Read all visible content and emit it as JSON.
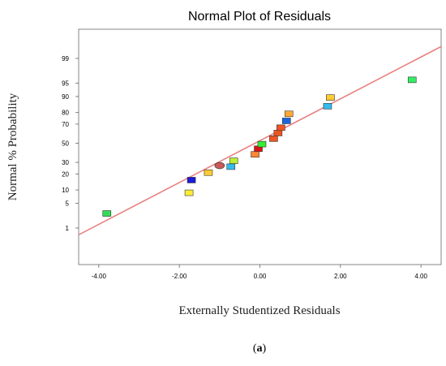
{
  "chart_data": {
    "type": "scatter",
    "title": "Normal Plot of Residuals",
    "xlabel": "Externally Studentized Residuals",
    "ylabel": "Normal % Probability",
    "xlim": [
      -4.5,
      4.5
    ],
    "x_ticks": [
      -4.0,
      -2.0,
      0.0,
      2.0,
      4.0
    ],
    "x_tick_labels": [
      "-4.00",
      "-2.00",
      "0.00",
      "2.00",
      "4.00"
    ],
    "y_scale": "normal-probability",
    "y_ticks": [
      1,
      5,
      10,
      20,
      30,
      50,
      70,
      80,
      90,
      95,
      99
    ],
    "y_tick_labels": [
      "1",
      "5",
      "10",
      "20",
      "30",
      "50",
      "70",
      "80",
      "90",
      "95",
      "99"
    ],
    "grid": false,
    "reference_line": {
      "from": [
        -4.5,
        0.6
      ],
      "to": [
        4.5,
        99.6
      ],
      "color": "#e88080"
    },
    "points": [
      {
        "x": -3.8,
        "y": 2.7,
        "color": "#33dd55",
        "shape": "rect"
      },
      {
        "x": -1.76,
        "y": 8.7,
        "color": "#ffee33",
        "shape": "rect"
      },
      {
        "x": -1.7,
        "y": 15.6,
        "color": "#1a1ad8",
        "shape": "rect"
      },
      {
        "x": -1.28,
        "y": 21.0,
        "color": "#ffcc33",
        "shape": "rect"
      },
      {
        "x": -1.0,
        "y": 27.0,
        "color": "#c85a5a",
        "shape": "ellipse"
      },
      {
        "x": -0.72,
        "y": 26.0,
        "color": "#33bbee",
        "shape": "rect"
      },
      {
        "x": -0.65,
        "y": 31.5,
        "color": "#bbee33",
        "shape": "rect"
      },
      {
        "x": -0.12,
        "y": 38.0,
        "color": "#ff8833",
        "shape": "rect"
      },
      {
        "x": -0.04,
        "y": 44.0,
        "color": "#dd1111",
        "shape": "rect"
      },
      {
        "x": 0.05,
        "y": 49.0,
        "color": "#33ee33",
        "shape": "rect"
      },
      {
        "x": 0.34,
        "y": 55.0,
        "color": "#ee5522",
        "shape": "rect"
      },
      {
        "x": 0.45,
        "y": 61.0,
        "color": "#ee5522",
        "shape": "rect"
      },
      {
        "x": 0.52,
        "y": 66.5,
        "color": "#ee5522",
        "shape": "rect"
      },
      {
        "x": 0.66,
        "y": 73.0,
        "color": "#1a66dd",
        "shape": "rect"
      },
      {
        "x": 0.72,
        "y": 79.0,
        "color": "#ffaa33",
        "shape": "rect"
      },
      {
        "x": 1.68,
        "y": 84.5,
        "color": "#33bbee",
        "shape": "rect"
      },
      {
        "x": 1.75,
        "y": 89.5,
        "color": "#ffcc33",
        "shape": "rect"
      },
      {
        "x": 3.78,
        "y": 95.9,
        "color": "#33ee66",
        "shape": "rect"
      }
    ]
  },
  "caption": {
    "open": "(",
    "letter": "a",
    "close": ")"
  }
}
